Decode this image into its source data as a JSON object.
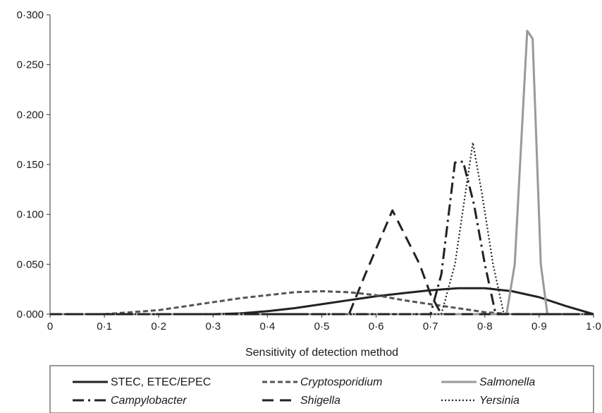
{
  "chart_data": {
    "type": "line",
    "xlabel": "Sensitivity of detection method",
    "ylabel": "",
    "xlim": [
      0,
      1.0
    ],
    "ylim": [
      0,
      0.3
    ],
    "x_ticks": [
      0,
      0.1,
      0.2,
      0.3,
      0.4,
      0.5,
      0.6,
      0.7,
      0.8,
      0.9,
      1.0
    ],
    "x_tick_labels": [
      "0",
      "0·1",
      "0·2",
      "0·3",
      "0·4",
      "0·5",
      "0·6",
      "0·7",
      "0·8",
      "0·9",
      "1·0"
    ],
    "y_ticks": [
      0,
      0.05,
      0.1,
      0.15,
      0.2,
      0.25,
      0.3
    ],
    "y_tick_labels": [
      "0·000",
      "0·050",
      "0·100",
      "0·150",
      "0·200",
      "0·250",
      "0·300"
    ],
    "grid": false,
    "legend_position": "bottom",
    "series": [
      {
        "name": "STEC, ETEC/EPEC",
        "italic": false,
        "color": "#222222",
        "dash": "solid",
        "points": [
          [
            0,
            0
          ],
          [
            0.3,
            0
          ],
          [
            0.35,
            0.0008
          ],
          [
            0.4,
            0.003
          ],
          [
            0.45,
            0.006
          ],
          [
            0.5,
            0.01
          ],
          [
            0.55,
            0.014
          ],
          [
            0.6,
            0.018
          ],
          [
            0.65,
            0.021
          ],
          [
            0.7,
            0.024
          ],
          [
            0.75,
            0.026
          ],
          [
            0.8,
            0.026
          ],
          [
            0.85,
            0.023
          ],
          [
            0.9,
            0.017
          ],
          [
            0.95,
            0.008
          ],
          [
            1.0,
            0
          ]
        ]
      },
      {
        "name": "Cryptosporidium",
        "italic": true,
        "color": "#555555",
        "dash": "short-dash",
        "points": [
          [
            0,
            0
          ],
          [
            0.1,
            0
          ],
          [
            0.15,
            0.002
          ],
          [
            0.2,
            0.004
          ],
          [
            0.25,
            0.008
          ],
          [
            0.3,
            0.012
          ],
          [
            0.35,
            0.016
          ],
          [
            0.4,
            0.019
          ],
          [
            0.45,
            0.022
          ],
          [
            0.5,
            0.023
          ],
          [
            0.55,
            0.022
          ],
          [
            0.6,
            0.019
          ],
          [
            0.65,
            0.014
          ],
          [
            0.7,
            0.01
          ],
          [
            0.75,
            0.006
          ],
          [
            0.8,
            0.002
          ],
          [
            0.85,
            0
          ],
          [
            1.0,
            0
          ]
        ]
      },
      {
        "name": "Salmonella",
        "italic": true,
        "color": "#999999",
        "dash": "solid",
        "points": [
          [
            0,
            0
          ],
          [
            0.84,
            0
          ],
          [
            0.855,
            0.05
          ],
          [
            0.878,
            0.284
          ],
          [
            0.888,
            0.276
          ],
          [
            0.903,
            0.05
          ],
          [
            0.915,
            0
          ],
          [
            1.0,
            0
          ]
        ]
      },
      {
        "name": "Campylobacter",
        "italic": true,
        "color": "#222222",
        "dash": "dash-dot",
        "points": [
          [
            0,
            0
          ],
          [
            0.7,
            0
          ],
          [
            0.72,
            0.04
          ],
          [
            0.745,
            0.152
          ],
          [
            0.76,
            0.153
          ],
          [
            0.78,
            0.11
          ],
          [
            0.8,
            0.05
          ],
          [
            0.82,
            0
          ],
          [
            1.0,
            0
          ]
        ]
      },
      {
        "name": "Shigella",
        "italic": true,
        "color": "#222222",
        "dash": "long-dash",
        "points": [
          [
            0,
            0
          ],
          [
            0.55,
            0
          ],
          [
            0.58,
            0.04
          ],
          [
            0.63,
            0.104
          ],
          [
            0.68,
            0.05
          ],
          [
            0.7,
            0.02
          ],
          [
            0.72,
            0
          ],
          [
            1.0,
            0
          ]
        ]
      },
      {
        "name": "Yersinia",
        "italic": true,
        "color": "#222222",
        "dash": "dotted",
        "points": [
          [
            0,
            0
          ],
          [
            0.72,
            0
          ],
          [
            0.745,
            0.05
          ],
          [
            0.778,
            0.172
          ],
          [
            0.795,
            0.12
          ],
          [
            0.815,
            0.05
          ],
          [
            0.835,
            0
          ],
          [
            1.0,
            0
          ]
        ]
      }
    ]
  }
}
